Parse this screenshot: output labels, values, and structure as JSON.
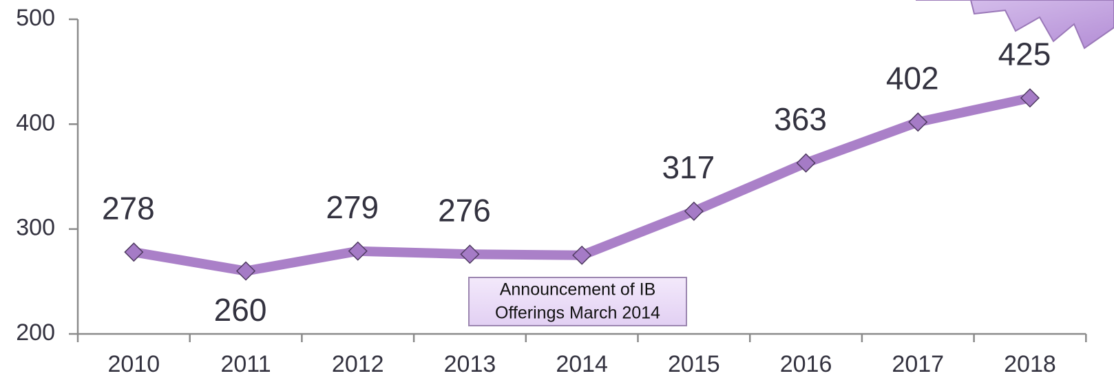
{
  "chart_data": {
    "type": "line",
    "categories": [
      "2010",
      "2011",
      "2012",
      "2013",
      "2014",
      "2015",
      "2016",
      "2017",
      "2018"
    ],
    "series": [
      {
        "color": "#aa80c8",
        "values": [
          278,
          260,
          279,
          276,
          275,
          317,
          363,
          402,
          425
        ]
      }
    ],
    "ylim": [
      200,
      500
    ],
    "yticks": [
      200,
      300,
      400,
      500
    ],
    "grid": false,
    "annotation": [
      "Announcement of IB",
      "Offerings March 2014"
    ]
  }
}
